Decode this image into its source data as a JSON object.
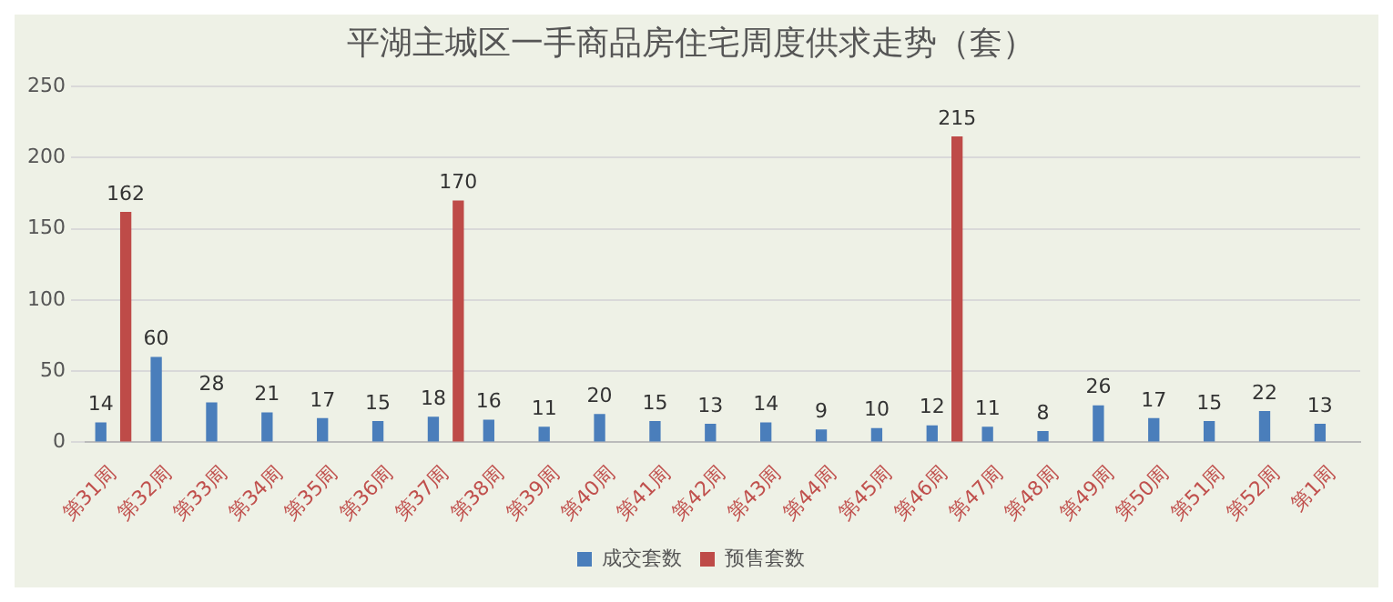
{
  "chart_data": {
    "type": "bar",
    "title": "平湖主城区一手商品房住宅周度供求走势（套）",
    "categories": [
      "第31周",
      "第32周",
      "第33周",
      "第34周",
      "第35周",
      "第36周",
      "第37周",
      "第38周",
      "第39周",
      "第40周",
      "第41周",
      "第42周",
      "第43周",
      "第44周",
      "第45周",
      "第46周",
      "第47周",
      "第48周",
      "第49周",
      "第50周",
      "第51周",
      "第52周",
      "第1周"
    ],
    "series": [
      {
        "name": "成交套数",
        "color": "#4a7ebb",
        "values": [
          14,
          60,
          28,
          21,
          17,
          15,
          18,
          16,
          11,
          20,
          15,
          13,
          14,
          9,
          10,
          12,
          11,
          8,
          26,
          17,
          15,
          22,
          13
        ]
      },
      {
        "name": "预售套数",
        "color": "#be4b48",
        "values": [
          162,
          null,
          null,
          null,
          null,
          null,
          170,
          null,
          null,
          null,
          null,
          null,
          null,
          null,
          null,
          215,
          null,
          null,
          null,
          null,
          null,
          null,
          null
        ]
      }
    ],
    "ylim": [
      0,
      250
    ],
    "yticks": [
      0,
      50,
      100,
      150,
      200,
      250
    ],
    "grid": "y",
    "legend": "bottom",
    "data_labels": true
  }
}
